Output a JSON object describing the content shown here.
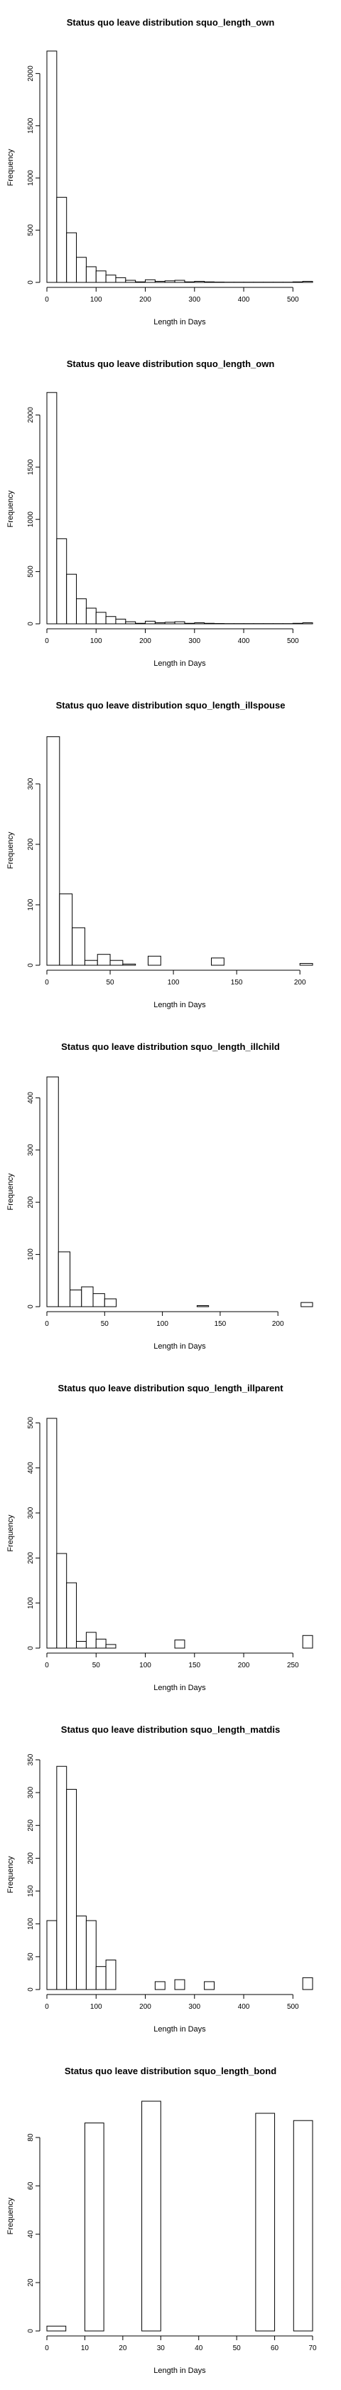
{
  "chart_data": [
    {
      "type": "bar",
      "title": "Status quo leave distribution squo_length_own",
      "xlabel": "Length in Days",
      "ylabel": "Frequency",
      "xlim": [
        0,
        540
      ],
      "ylim": [
        0,
        2200
      ],
      "xticks": [
        0,
        100,
        200,
        300,
        400,
        500
      ],
      "yticks": [
        0,
        500,
        1000,
        1500,
        2000
      ],
      "bin_width": 20,
      "bins": [
        [
          0,
          20
        ],
        [
          20,
          40
        ],
        [
          40,
          60
        ],
        [
          60,
          80
        ],
        [
          80,
          100
        ],
        [
          100,
          120
        ],
        [
          120,
          140
        ],
        [
          140,
          160
        ],
        [
          160,
          180
        ],
        [
          180,
          200
        ],
        [
          200,
          220
        ],
        [
          220,
          240
        ],
        [
          240,
          260
        ],
        [
          260,
          280
        ],
        [
          280,
          300
        ],
        [
          300,
          320
        ],
        [
          320,
          340
        ],
        [
          340,
          360
        ],
        [
          360,
          380
        ],
        [
          380,
          400
        ],
        [
          400,
          420
        ],
        [
          420,
          440
        ],
        [
          440,
          460
        ],
        [
          460,
          480
        ],
        [
          480,
          500
        ],
        [
          500,
          520
        ],
        [
          520,
          540
        ]
      ],
      "values": [
        2215,
        815,
        475,
        240,
        150,
        110,
        70,
        45,
        20,
        5,
        25,
        10,
        15,
        20,
        5,
        10,
        5,
        3,
        2,
        2,
        2,
        2,
        2,
        2,
        2,
        5,
        10
      ]
    },
    {
      "type": "bar",
      "title": "Status quo leave distribution squo_length_own",
      "xlabel": "Length in Days",
      "ylabel": "Frequency",
      "xlim": [
        0,
        540
      ],
      "ylim": [
        0,
        2200
      ],
      "xticks": [
        0,
        100,
        200,
        300,
        400,
        500
      ],
      "yticks": [
        0,
        500,
        1000,
        1500,
        2000
      ],
      "bin_width": 20,
      "bins": [
        [
          0,
          20
        ],
        [
          20,
          40
        ],
        [
          40,
          60
        ],
        [
          60,
          80
        ],
        [
          80,
          100
        ],
        [
          100,
          120
        ],
        [
          120,
          140
        ],
        [
          140,
          160
        ],
        [
          160,
          180
        ],
        [
          180,
          200
        ],
        [
          200,
          220
        ],
        [
          220,
          240
        ],
        [
          240,
          260
        ],
        [
          260,
          280
        ],
        [
          280,
          300
        ],
        [
          300,
          320
        ],
        [
          320,
          340
        ],
        [
          340,
          360
        ],
        [
          360,
          380
        ],
        [
          380,
          400
        ],
        [
          400,
          420
        ],
        [
          420,
          440
        ],
        [
          440,
          460
        ],
        [
          460,
          480
        ],
        [
          480,
          500
        ],
        [
          500,
          520
        ],
        [
          520,
          540
        ]
      ],
      "values": [
        2215,
        815,
        475,
        240,
        150,
        110,
        70,
        45,
        20,
        5,
        25,
        10,
        15,
        20,
        5,
        10,
        5,
        3,
        2,
        2,
        2,
        2,
        2,
        2,
        2,
        5,
        10
      ]
    },
    {
      "type": "bar",
      "title": "Status quo leave distribution squo_length_illspouse",
      "xlabel": "Length in Days",
      "ylabel": "Frequency",
      "xlim": [
        0,
        210
      ],
      "ylim": [
        0,
        380
      ],
      "xticks": [
        0,
        50,
        100,
        150,
        200
      ],
      "yticks": [
        0,
        100,
        200,
        300
      ],
      "bin_width": 10,
      "bins": [
        [
          0,
          10
        ],
        [
          10,
          20
        ],
        [
          20,
          30
        ],
        [
          30,
          40
        ],
        [
          40,
          50
        ],
        [
          50,
          60
        ],
        [
          60,
          70
        ],
        [
          70,
          80
        ],
        [
          80,
          90
        ],
        [
          90,
          100
        ],
        [
          100,
          110
        ],
        [
          110,
          120
        ],
        [
          120,
          130
        ],
        [
          130,
          140
        ],
        [
          140,
          150
        ],
        [
          150,
          160
        ],
        [
          160,
          170
        ],
        [
          170,
          180
        ],
        [
          180,
          190
        ],
        [
          190,
          200
        ],
        [
          200,
          210
        ]
      ],
      "values": [
        378,
        118,
        62,
        8,
        18,
        8,
        2,
        0,
        15,
        0,
        0,
        0,
        0,
        12,
        0,
        0,
        0,
        0,
        0,
        0,
        3
      ]
    },
    {
      "type": "bar",
      "title": "Status quo leave distribution squo_length_illchild",
      "xlabel": "Length in Days",
      "ylabel": "Frequency",
      "xlim": [
        0,
        230
      ],
      "ylim": [
        0,
        440
      ],
      "xticks": [
        0,
        50,
        100,
        150,
        200
      ],
      "yticks": [
        0,
        100,
        200,
        300,
        400
      ],
      "bin_width": 10,
      "bins": [
        [
          0,
          10
        ],
        [
          10,
          20
        ],
        [
          20,
          30
        ],
        [
          30,
          40
        ],
        [
          40,
          50
        ],
        [
          50,
          60
        ],
        [
          60,
          70
        ],
        [
          70,
          80
        ],
        [
          80,
          90
        ],
        [
          90,
          100
        ],
        [
          100,
          110
        ],
        [
          110,
          120
        ],
        [
          120,
          130
        ],
        [
          130,
          140
        ],
        [
          140,
          150
        ],
        [
          150,
          160
        ],
        [
          160,
          170
        ],
        [
          170,
          180
        ],
        [
          180,
          190
        ],
        [
          190,
          200
        ],
        [
          200,
          210
        ],
        [
          210,
          220
        ],
        [
          220,
          230
        ]
      ],
      "values": [
        440,
        105,
        32,
        38,
        25,
        15,
        0,
        0,
        0,
        0,
        0,
        0,
        0,
        2,
        0,
        0,
        0,
        0,
        0,
        0,
        0,
        0,
        8
      ]
    },
    {
      "type": "bar",
      "title": "Status quo leave distribution squo_length_illparent",
      "xlabel": "Length in Days",
      "ylabel": "Frequency",
      "xlim": [
        0,
        270
      ],
      "ylim": [
        0,
        510
      ],
      "xticks": [
        0,
        50,
        100,
        150,
        200,
        250
      ],
      "yticks": [
        0,
        100,
        200,
        300,
        400,
        500
      ],
      "bin_width": 10,
      "bins": [
        [
          0,
          10
        ],
        [
          10,
          20
        ],
        [
          20,
          30
        ],
        [
          30,
          40
        ],
        [
          40,
          50
        ],
        [
          50,
          60
        ],
        [
          60,
          70
        ],
        [
          70,
          80
        ],
        [
          80,
          90
        ],
        [
          90,
          100
        ],
        [
          100,
          110
        ],
        [
          110,
          120
        ],
        [
          120,
          130
        ],
        [
          130,
          140
        ],
        [
          140,
          150
        ],
        [
          150,
          160
        ],
        [
          160,
          170
        ],
        [
          170,
          180
        ],
        [
          180,
          190
        ],
        [
          190,
          200
        ],
        [
          200,
          210
        ],
        [
          210,
          220
        ],
        [
          220,
          230
        ],
        [
          230,
          240
        ],
        [
          240,
          250
        ],
        [
          250,
          260
        ],
        [
          260,
          270
        ]
      ],
      "values": [
        510,
        210,
        145,
        15,
        35,
        20,
        8,
        0,
        0,
        0,
        0,
        0,
        0,
        18,
        0,
        0,
        0,
        0,
        0,
        0,
        0,
        0,
        0,
        0,
        0,
        0,
        28
      ]
    },
    {
      "type": "bar",
      "title": "Status quo leave distribution squo_length_matdis",
      "xlabel": "Length in Days",
      "ylabel": "Frequency",
      "xlim": [
        0,
        540
      ],
      "ylim": [
        0,
        350
      ],
      "xticks": [
        0,
        100,
        200,
        300,
        400,
        500
      ],
      "yticks": [
        0,
        50,
        100,
        150,
        200,
        250,
        300,
        350
      ],
      "bin_width": 20,
      "bins": [
        [
          0,
          20
        ],
        [
          20,
          40
        ],
        [
          40,
          60
        ],
        [
          60,
          80
        ],
        [
          80,
          100
        ],
        [
          100,
          120
        ],
        [
          120,
          140
        ],
        [
          140,
          160
        ],
        [
          160,
          180
        ],
        [
          180,
          200
        ],
        [
          200,
          220
        ],
        [
          220,
          240
        ],
        [
          240,
          260
        ],
        [
          260,
          280
        ],
        [
          280,
          300
        ],
        [
          300,
          320
        ],
        [
          320,
          340
        ],
        [
          340,
          360
        ],
        [
          360,
          380
        ],
        [
          380,
          400
        ],
        [
          400,
          420
        ],
        [
          420,
          440
        ],
        [
          440,
          460
        ],
        [
          460,
          480
        ],
        [
          480,
          500
        ],
        [
          500,
          520
        ],
        [
          520,
          540
        ]
      ],
      "values": [
        105,
        340,
        305,
        112,
        105,
        35,
        45,
        0,
        0,
        0,
        0,
        12,
        0,
        15,
        0,
        0,
        12,
        0,
        0,
        0,
        0,
        0,
        0,
        0,
        0,
        0,
        18
      ]
    },
    {
      "type": "bar",
      "title": "Status quo leave distribution squo_length_bond",
      "xlabel": "Length in Days",
      "ylabel": "Frequency",
      "xlim": [
        0,
        70
      ],
      "ylim": [
        0,
        95
      ],
      "xticks": [
        0,
        10,
        20,
        30,
        40,
        50,
        60,
        70
      ],
      "yticks": [
        0,
        20,
        40,
        60,
        80
      ],
      "bin_width": 5,
      "bins": [
        [
          0,
          5
        ],
        [
          5,
          10
        ],
        [
          10,
          15
        ],
        [
          15,
          20
        ],
        [
          20,
          25
        ],
        [
          25,
          30
        ],
        [
          30,
          35
        ],
        [
          35,
          40
        ],
        [
          40,
          45
        ],
        [
          45,
          50
        ],
        [
          50,
          55
        ],
        [
          55,
          60
        ],
        [
          60,
          65
        ],
        [
          65,
          70
        ]
      ],
      "values": [
        2,
        0,
        86,
        0,
        0,
        95,
        0,
        0,
        0,
        0,
        0,
        90,
        0,
        87
      ]
    }
  ]
}
